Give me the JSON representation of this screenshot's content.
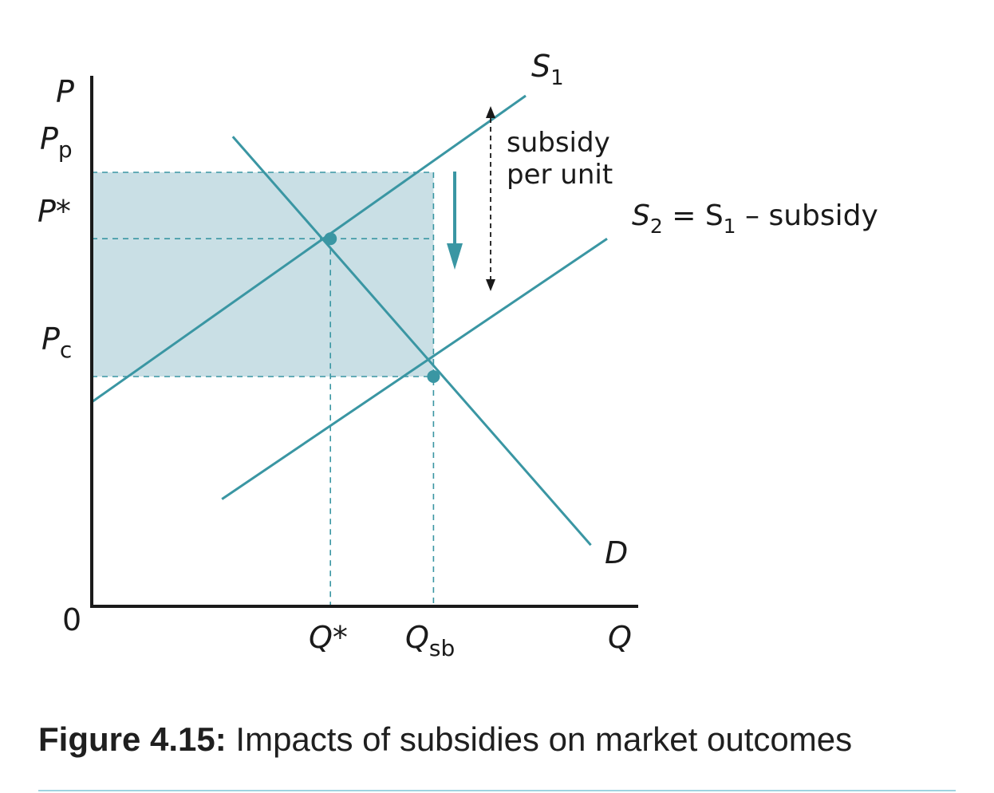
{
  "chart_data": {
    "type": "line",
    "title": "",
    "xlabel": "Q",
    "ylabel": "P",
    "origin_label": "0",
    "xlim": [
      0,
      10
    ],
    "ylim": [
      0,
      10
    ],
    "series": [
      {
        "name": "S1",
        "label_main": "S",
        "label_sub": "1",
        "points": [
          [
            0,
            4
          ],
          [
            8,
            10
          ]
        ]
      },
      {
        "name": "D",
        "label": "D",
        "points": [
          [
            2.6,
            9.2
          ],
          [
            9.2,
            1.2
          ]
        ]
      },
      {
        "name": "S2",
        "label_main": "S",
        "label_sub": "2",
        "label_rest": " = S",
        "label_rest_sub": "1",
        "label_tail": " – subsidy",
        "points": [
          [
            2.4,
            2.1
          ],
          [
            9.5,
            7.2
          ]
        ]
      }
    ],
    "price_levels": {
      "Pp": {
        "main": "P",
        "sub": "p",
        "value": 8.5
      },
      "Pstar": {
        "label": "P*",
        "value": 7.2
      },
      "Pc": {
        "main": "P",
        "sub": "c",
        "value": 4.5
      }
    },
    "quantity_levels": {
      "Qstar": {
        "label": "Q*",
        "value": 4.4
      },
      "Qsb": {
        "main": "Q",
        "sub": "sb",
        "value": 6.3
      }
    },
    "equilibria": [
      {
        "name": "original",
        "x": 4.4,
        "y": 7.2
      },
      {
        "name": "subsidized",
        "x": 6.3,
        "y": 4.5
      }
    ],
    "shaded_region": {
      "x": [
        0,
        6.3
      ],
      "y": [
        4.5,
        8.5
      ],
      "meaning": "subsidy cost"
    },
    "annotations": {
      "subsidy_line1": "subsidy",
      "subsidy_line2": "per unit"
    },
    "colors": {
      "line": "#3a96a3",
      "fill": "#c9dfe5",
      "axis": "#1a1a1a",
      "arrow": "#3a96a3"
    }
  },
  "caption": {
    "bold": "Figure 4.15:",
    "text": " Impacts of subsidies on market outcomes"
  }
}
